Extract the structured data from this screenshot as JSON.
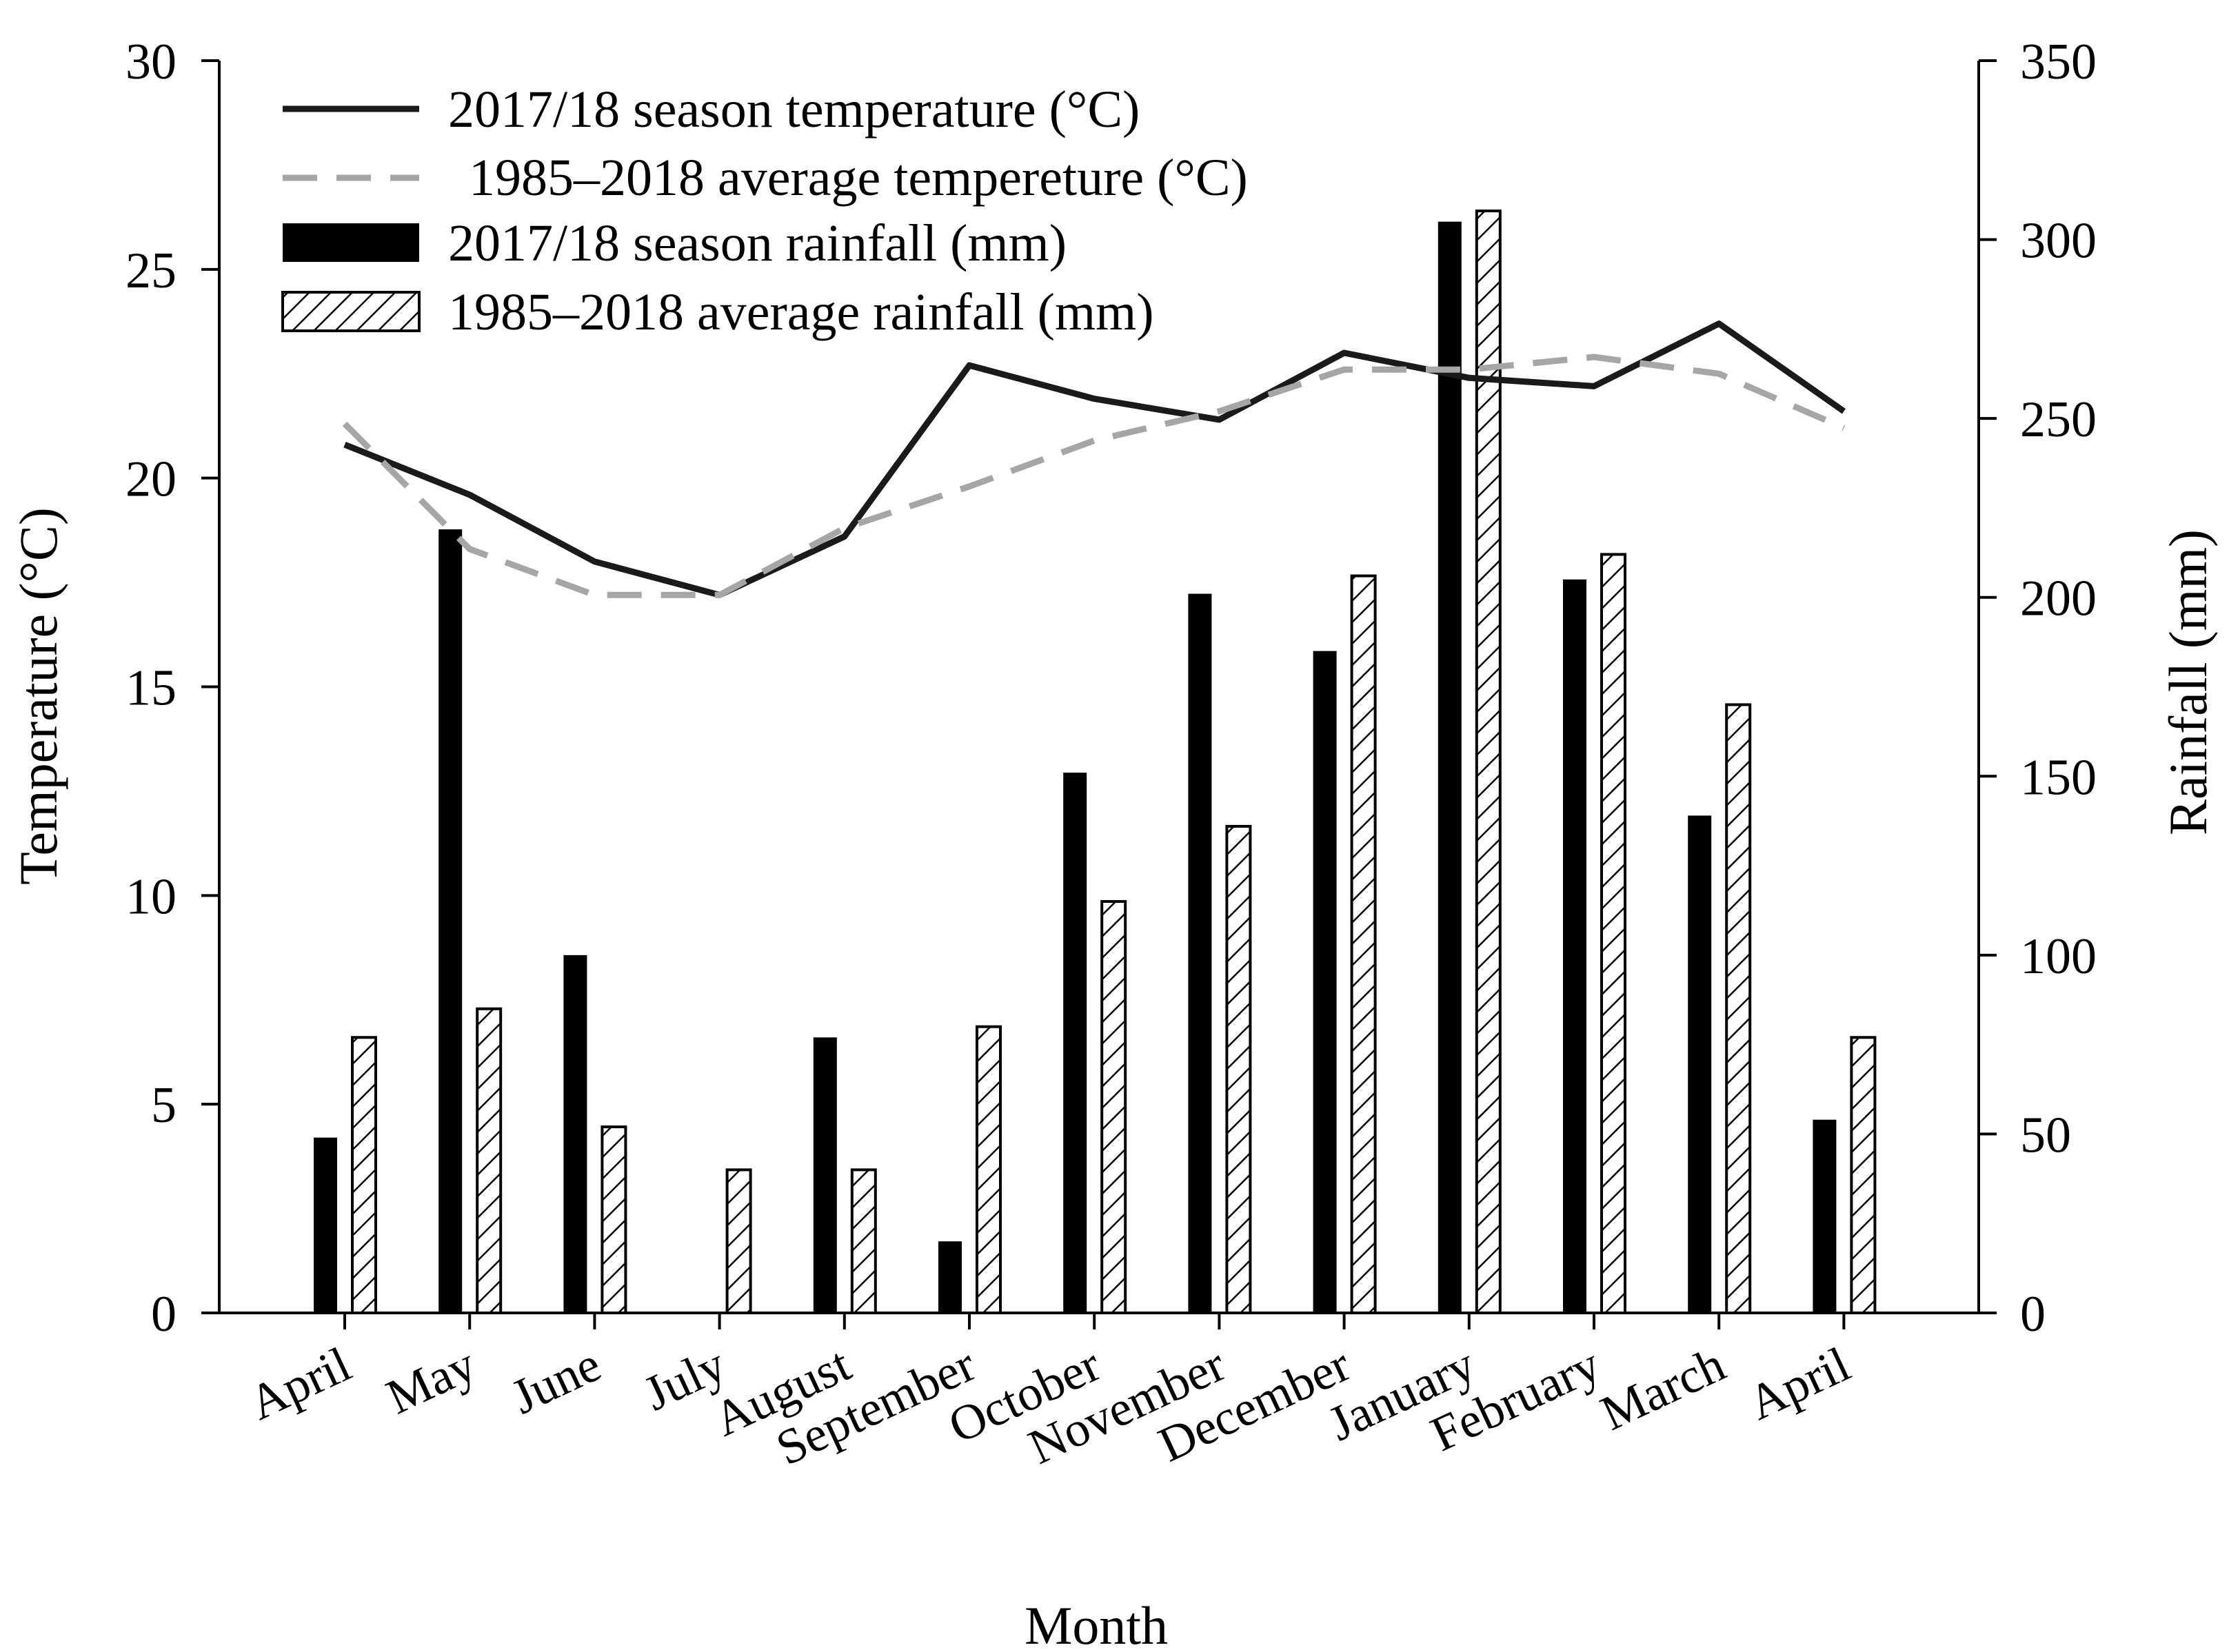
{
  "chart_data": {
    "type": "bar+line",
    "xlabel": "Month",
    "ylabel_left": "Temperature (°C)",
    "ylabel_right": "Rainfall (mm)",
    "categories": [
      "April",
      "May",
      "June",
      "July",
      "August",
      "September",
      "October",
      "November",
      "December",
      "January",
      "February",
      "March",
      "April"
    ],
    "ylim_left": [
      0,
      30
    ],
    "yticks_left": [
      "0",
      "5",
      "10",
      "15",
      "20",
      "25",
      "30"
    ],
    "ylim_right": [
      0,
      350
    ],
    "yticks_right": [
      "0",
      "50",
      "100",
      "150",
      "200",
      "250",
      "300",
      "350"
    ],
    "legend": {
      "season_temp": "2017/18 season temperature (°C)",
      "avg_temp": "1985–2018 average tempereture (°C)",
      "season_rain": "2017/18 season rainfall (mm)",
      "avg_rain": "1985–2018 average rainfall (mm)"
    },
    "series": [
      {
        "name": "2017/18 season temperature (°C)",
        "kind": "line",
        "axis": "left",
        "style": "solid",
        "color": "#1a1a1a",
        "values": [
          20.8,
          19.6,
          18.0,
          17.2,
          18.6,
          22.7,
          21.9,
          21.4,
          23.0,
          22.4,
          22.2,
          23.7,
          21.6
        ]
      },
      {
        "name": "1985–2018 average tempereture (°C)",
        "kind": "line",
        "axis": "left",
        "style": "dashed",
        "color": "#a6a6a6",
        "values": [
          21.3,
          18.3,
          17.2,
          17.2,
          18.8,
          19.8,
          20.9,
          21.6,
          22.6,
          22.6,
          22.9,
          22.5,
          21.2
        ]
      },
      {
        "name": "2017/18 season rainfall (mm)",
        "kind": "bar",
        "axis": "right",
        "fill": "#000000",
        "values": [
          49,
          219,
          100,
          0,
          77,
          20,
          151,
          201,
          185,
          305,
          205,
          139,
          54
        ]
      },
      {
        "name": "1985–2018 average rainfall (mm)",
        "kind": "bar",
        "axis": "right",
        "fill": "hatched",
        "values": [
          77,
          85,
          52,
          40,
          40,
          80,
          115,
          136,
          206,
          308,
          212,
          170,
          77
        ]
      }
    ]
  }
}
